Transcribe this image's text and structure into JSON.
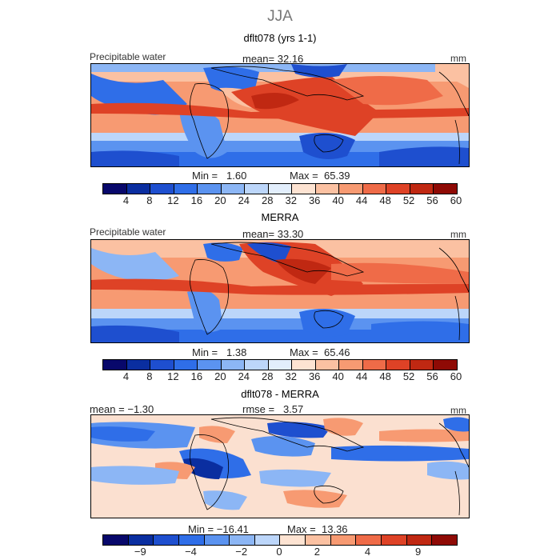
{
  "figure": {
    "season": "JJA"
  },
  "panels": [
    {
      "title": "dflt078 (yrs 1-1)",
      "variable": "Precipitable water",
      "mean_text": "mean=",
      "mean_value": "32.16",
      "units": "mm",
      "min_label": "Min =",
      "min_value": "1.60",
      "max_label": "Max =",
      "max_value": "65.39",
      "ticks": [
        "4",
        "8",
        "12",
        "16",
        "20",
        "24",
        "28",
        "32",
        "36",
        "40",
        "44",
        "48",
        "52",
        "56",
        "60"
      ]
    },
    {
      "title": "MERRA",
      "variable": "Precipitable water",
      "mean_text": "mean=",
      "mean_value": "33.30",
      "units": "mm",
      "min_label": "Min =",
      "min_value": "1.38",
      "max_label": "Max =",
      "max_value": "65.46",
      "ticks": [
        "4",
        "8",
        "12",
        "16",
        "20",
        "24",
        "28",
        "32",
        "36",
        "40",
        "44",
        "48",
        "52",
        "56",
        "60"
      ]
    },
    {
      "title": "dflt078 - MERRA",
      "mean_text": "mean =",
      "mean_value": "−1.30",
      "rmse_text": "rmse =",
      "rmse_value": "3.57",
      "units": "mm",
      "min_label": "Min =",
      "min_value": "−16.41",
      "max_label": "Max =",
      "max_value": "13.36",
      "ticks": [
        "−9",
        "−4",
        "−2",
        "0",
        "2",
        "4",
        "9"
      ]
    }
  ],
  "colors": {
    "full_palette": [
      "#08086b",
      "#0a2ea0",
      "#1e4fcf",
      "#2f6ee8",
      "#5b93f0",
      "#8cb6f5",
      "#bcd6fa",
      "#e2eefc",
      "#fde3d2",
      "#fbc1a2",
      "#f79a72",
      "#ef6b48",
      "#de4226",
      "#c02812",
      "#8f0a05"
    ],
    "diff_palette": [
      "#08086b",
      "#0a2ea0",
      "#1e4fcf",
      "#2f6ee8",
      "#5b93f0",
      "#8cb6f5",
      "#bcd6fa",
      "#fde3d2",
      "#fbc1a2",
      "#f79a72",
      "#ef6b48",
      "#de4226",
      "#c02812",
      "#8f0a05"
    ],
    "diff_background": "#fbe0d0"
  }
}
